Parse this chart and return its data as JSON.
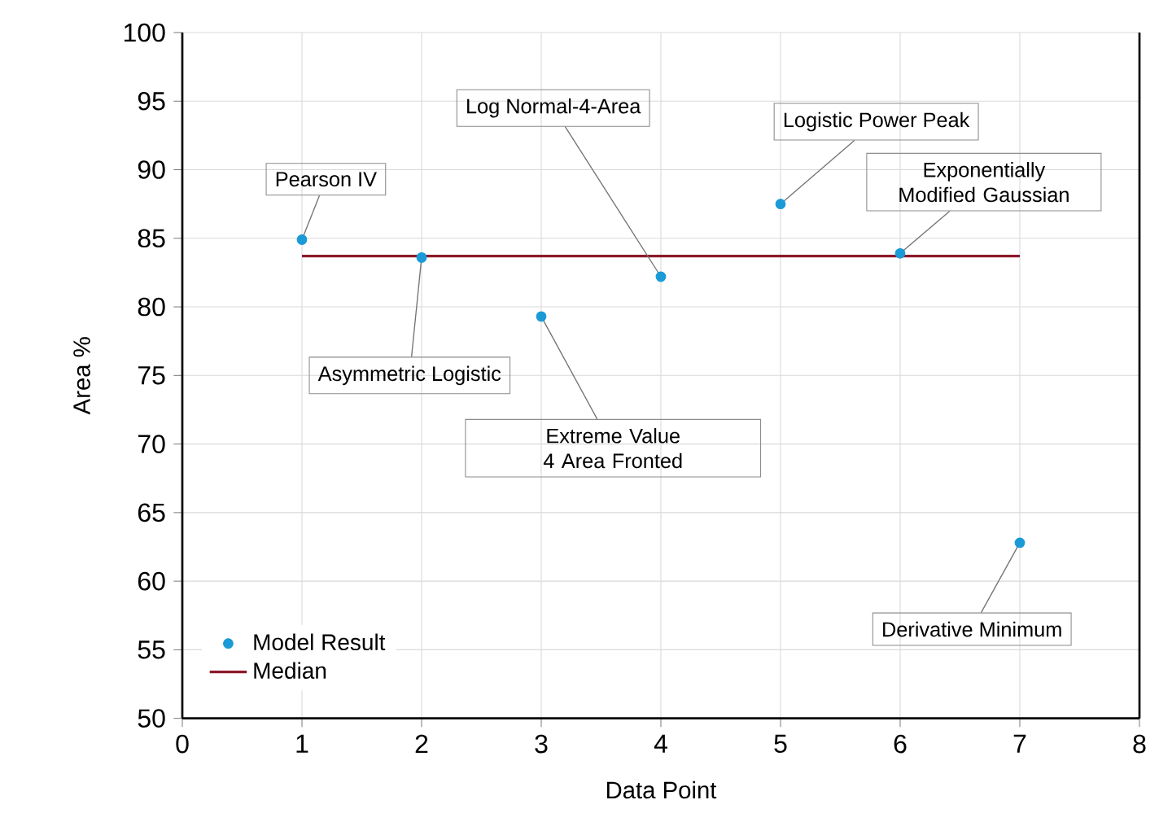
{
  "chart_data": {
    "type": "scatter",
    "xlabel": "Data Point",
    "ylabel": "Area %",
    "xlim": [
      0,
      8
    ],
    "xticks": [
      0,
      1,
      2,
      3,
      4,
      5,
      6,
      7,
      8
    ],
    "ylim": [
      50,
      100
    ],
    "yticks": [
      50,
      55,
      60,
      65,
      70,
      75,
      80,
      85,
      90,
      95,
      100
    ],
    "grid": true,
    "legend": "bottom left",
    "marker": "circle",
    "series": [
      {
        "name": "Model Result",
        "color": "#1a9ad6",
        "x": [
          1,
          2,
          3,
          4,
          5,
          6,
          7
        ],
        "values": [
          84.9,
          83.6,
          79.3,
          82.2,
          87.5,
          83.9,
          62.8
        ]
      },
      {
        "name": "Median",
        "type": "line",
        "marker": "none",
        "color": "#8b1a2b",
        "x": [
          1,
          7
        ],
        "values": [
          83.7,
          83.7
        ]
      }
    ],
    "annotations": [
      {
        "text": "Pearson IV",
        "x": 1,
        "y": 84.9
      },
      {
        "text": "Asymmetric Logistic",
        "x": 2,
        "y": 83.6
      },
      {
        "text": "Extreme Value 4 Area Fronted",
        "x": 3,
        "y": 79.3
      },
      {
        "text": "Log Normal-4-Area",
        "x": 4,
        "y": 82.2
      },
      {
        "text": "Logistic Power Peak",
        "x": 5,
        "y": 87.5
      },
      {
        "text": "Exponentially Modified Gaussian",
        "x": 6,
        "y": 83.9
      },
      {
        "text": "Derivative Minimum",
        "x": 7,
        "y": 62.8
      }
    ]
  }
}
